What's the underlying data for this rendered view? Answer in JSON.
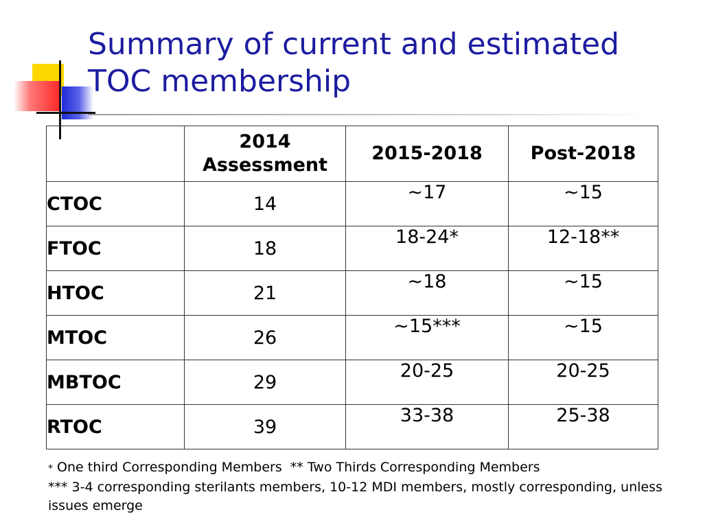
{
  "title": "Summary of current and estimated TOC membership",
  "table": {
    "headers": [
      "",
      "2014 Assessment",
      "2015-2018",
      "Post-2018"
    ],
    "rows": [
      {
        "name": "CTOC",
        "assessment_2014": "14",
        "period_2015_2018": "~17",
        "post_2018": "~15"
      },
      {
        "name": "FTOC",
        "assessment_2014": "18",
        "period_2015_2018": "18-24*",
        "post_2018": "12-18**"
      },
      {
        "name": "HTOC",
        "assessment_2014": "21",
        "period_2015_2018": "~18",
        "post_2018": "~15"
      },
      {
        "name": "MTOC",
        "assessment_2014": "26",
        "period_2015_2018": "~15***",
        "post_2018": "~15"
      },
      {
        "name": "MBTOC",
        "assessment_2014": "29",
        "period_2015_2018": "20-25",
        "post_2018": "20-25"
      },
      {
        "name": "RTOC",
        "assessment_2014": "39",
        "period_2015_2018": "33-38",
        "post_2018": "25-38"
      }
    ]
  },
  "footnotes": {
    "line1_star": "*",
    "line1_text": " One third Corresponding Members  ** Two Thirds Corresponding Members",
    "line2": "*** 3-4 corresponding sterilants members, 10-12 MDI members, mostly corresponding, unless issues emerge"
  },
  "colors": {
    "title": "#1c1ca0",
    "logo_yellow": "#ffd800",
    "logo_red": "#ff2a2a",
    "logo_blue": "#1f2bd8"
  }
}
